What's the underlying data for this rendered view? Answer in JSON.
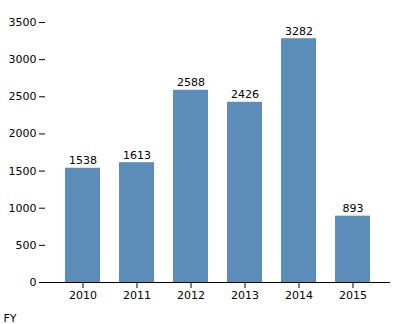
{
  "chart_data": {
    "type": "bar",
    "categories": [
      "2010",
      "2011",
      "2012",
      "2013",
      "2014",
      "2015"
    ],
    "values": [
      1538,
      1613,
      2588,
      2426,
      3282,
      893
    ],
    "color": "#5b8db8",
    "xlabel": "FY",
    "ylim": [
      0,
      3500
    ],
    "yticks": [
      0,
      500,
      1000,
      1500,
      2000,
      2500,
      3000,
      3500
    ],
    "grid": false,
    "data_labels": true
  }
}
